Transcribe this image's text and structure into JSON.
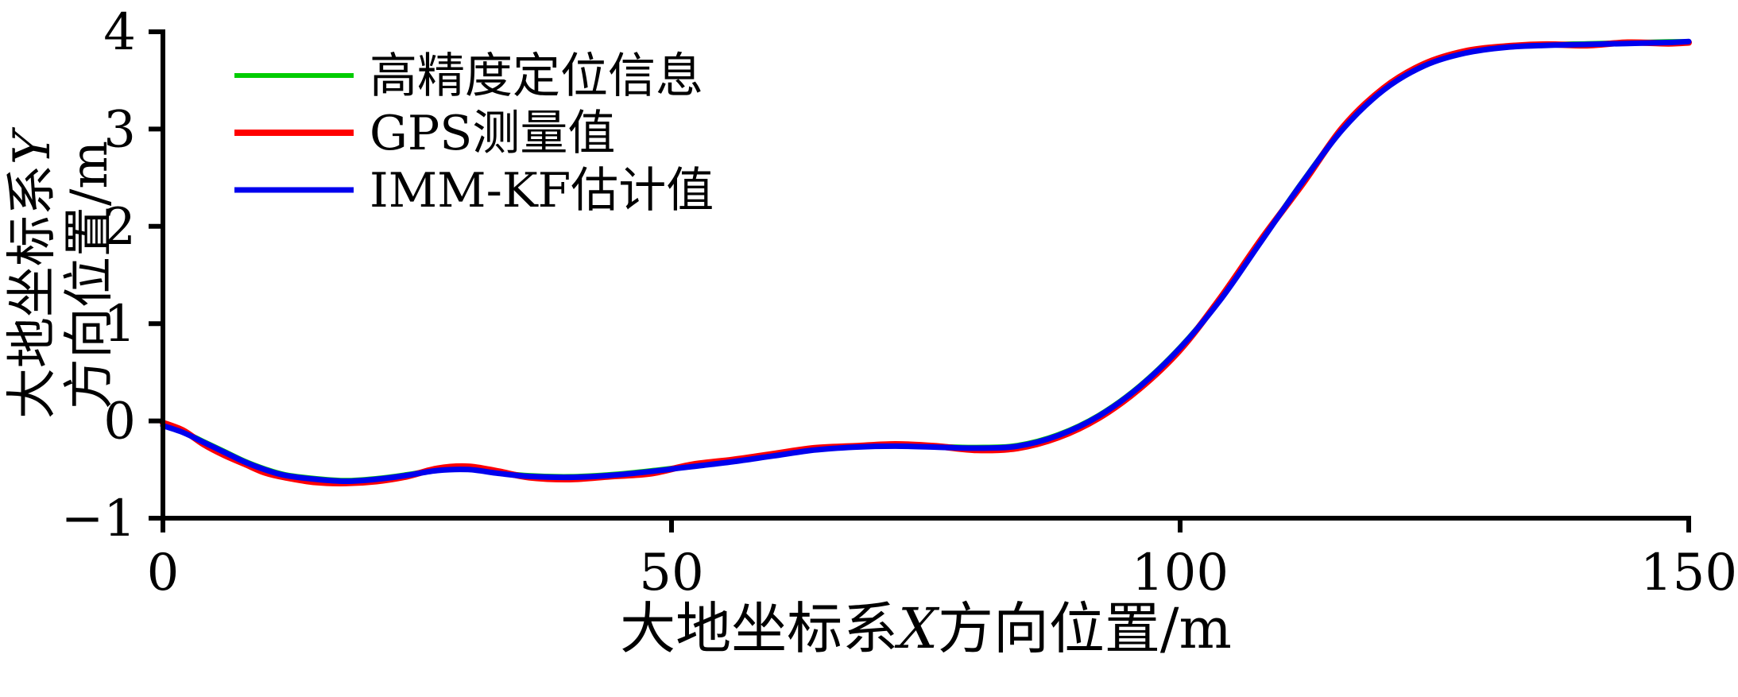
{
  "chart_data": {
    "type": "line",
    "title": "",
    "xlabel": {
      "prefix": "大地坐标系",
      "variable": "X",
      "suffix": "方向位置/m"
    },
    "ylabel": {
      "line1_prefix": "大地坐标系",
      "line1_variable": "Y",
      "line2": "方向位置/m"
    },
    "xlim": [
      0,
      150
    ],
    "ylim": [
      -1,
      4
    ],
    "x_ticks": {
      "values": [
        0,
        50,
        100,
        150
      ],
      "labels": [
        "0",
        "50",
        "100",
        "150"
      ]
    },
    "y_ticks": {
      "values": [
        -1,
        0,
        1,
        2,
        3,
        4
      ],
      "labels": [
        "−1",
        "0",
        "1",
        "2",
        "3",
        "4"
      ]
    },
    "grid": false,
    "legend_position": "upper-left-inside",
    "axis_color": "#000000",
    "text_color": "#000000",
    "x": [
      0,
      2,
      4,
      6,
      8,
      10,
      12,
      15,
      18,
      21,
      24,
      27,
      30,
      33,
      36,
      40,
      44,
      48,
      52,
      56,
      60,
      64,
      68,
      72,
      76,
      80,
      84,
      88,
      92,
      96,
      100,
      104,
      108,
      112,
      116,
      120,
      124,
      128,
      132,
      136,
      140,
      144,
      148,
      150
    ],
    "series": [
      {
        "name": "高精度定位信息",
        "color": "#00cc00",
        "stroke_width": 6,
        "values": [
          -0.04,
          -0.11,
          -0.21,
          -0.31,
          -0.41,
          -0.49,
          -0.55,
          -0.59,
          -0.61,
          -0.59,
          -0.55,
          -0.5,
          -0.49,
          -0.53,
          -0.56,
          -0.57,
          -0.55,
          -0.51,
          -0.46,
          -0.41,
          -0.35,
          -0.29,
          -0.26,
          -0.25,
          -0.26,
          -0.27,
          -0.25,
          -0.14,
          0.06,
          0.36,
          0.76,
          1.26,
          1.86,
          2.46,
          3.01,
          3.41,
          3.66,
          3.79,
          3.85,
          3.87,
          3.88,
          3.89,
          3.9,
          3.9
        ]
      },
      {
        "name": "GPS测量值",
        "color": "#ff0000",
        "stroke_width": 8,
        "values": [
          -0.02,
          -0.1,
          -0.24,
          -0.35,
          -0.44,
          -0.53,
          -0.58,
          -0.63,
          -0.64,
          -0.62,
          -0.57,
          -0.49,
          -0.47,
          -0.52,
          -0.58,
          -0.6,
          -0.57,
          -0.54,
          -0.45,
          -0.4,
          -0.34,
          -0.28,
          -0.26,
          -0.24,
          -0.26,
          -0.3,
          -0.28,
          -0.17,
          0.03,
          0.33,
          0.73,
          1.27,
          1.87,
          2.43,
          3.02,
          3.42,
          3.67,
          3.8,
          3.85,
          3.87,
          3.86,
          3.89,
          3.88,
          3.89
        ]
      },
      {
        "name": "IMM-KF估计值",
        "color": "#0000ee",
        "stroke_width": 7,
        "values": [
          -0.05,
          -0.12,
          -0.22,
          -0.32,
          -0.42,
          -0.5,
          -0.56,
          -0.6,
          -0.62,
          -0.6,
          -0.56,
          -0.51,
          -0.5,
          -0.54,
          -0.57,
          -0.58,
          -0.56,
          -0.52,
          -0.47,
          -0.42,
          -0.36,
          -0.3,
          -0.27,
          -0.26,
          -0.27,
          -0.28,
          -0.26,
          -0.15,
          0.05,
          0.35,
          0.75,
          1.25,
          1.85,
          2.45,
          3.0,
          3.4,
          3.65,
          3.78,
          3.84,
          3.86,
          3.87,
          3.88,
          3.89,
          3.9
        ]
      }
    ]
  }
}
